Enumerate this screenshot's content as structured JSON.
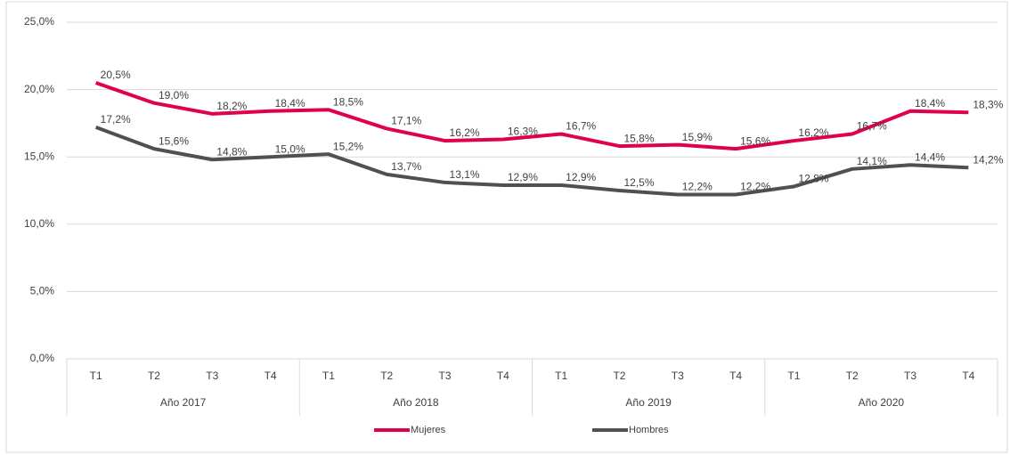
{
  "chart_data": {
    "type": "line",
    "categories": [
      "T1",
      "T2",
      "T3",
      "T4",
      "T1",
      "T2",
      "T3",
      "T4",
      "T1",
      "T2",
      "T3",
      "T4",
      "T1",
      "T2",
      "T3",
      "T4"
    ],
    "groups": [
      "Año 2017",
      "Año 2018",
      "Año 2019",
      "Año 2020"
    ],
    "series": [
      {
        "name": "Mujeres",
        "color": "#e0004d",
        "values": [
          20.5,
          19.0,
          18.2,
          18.4,
          18.5,
          17.1,
          16.2,
          16.3,
          16.7,
          15.8,
          15.9,
          15.6,
          16.2,
          16.7,
          18.4,
          18.3
        ],
        "value_labels": [
          "20,5%",
          "19,0%",
          "18,2%",
          "18,4%",
          "18,5%",
          "17,1%",
          "16,2%",
          "16,3%",
          "16,7%",
          "15,8%",
          "15,9%",
          "15,6%",
          "16,2%",
          "16,7%",
          "18,4%",
          "18,3%"
        ]
      },
      {
        "name": "Hombres",
        "color": "#505050",
        "values": [
          17.2,
          15.6,
          14.8,
          15.0,
          15.2,
          13.7,
          13.1,
          12.9,
          12.9,
          12.5,
          12.2,
          12.2,
          12.8,
          14.1,
          14.4,
          14.2
        ],
        "value_labels": [
          "17,2%",
          "15,6%",
          "14,8%",
          "15,0%",
          "15,2%",
          "13,7%",
          "13,1%",
          "12,9%",
          "12,9%",
          "12,5%",
          "12,2%",
          "12,2%",
          "12,8%",
          "14,1%",
          "14,4%",
          "14,2%"
        ]
      }
    ],
    "ylim": [
      0,
      25
    ],
    "yticks": [
      {
        "value": 0,
        "label": "0,0%"
      },
      {
        "value": 5,
        "label": "5,0%"
      },
      {
        "value": 10,
        "label": "10,0%"
      },
      {
        "value": 15,
        "label": "15,0%"
      },
      {
        "value": 20,
        "label": "20,0%"
      },
      {
        "value": 25,
        "label": "25,0%"
      }
    ],
    "grid": true,
    "legend": "bottom"
  }
}
